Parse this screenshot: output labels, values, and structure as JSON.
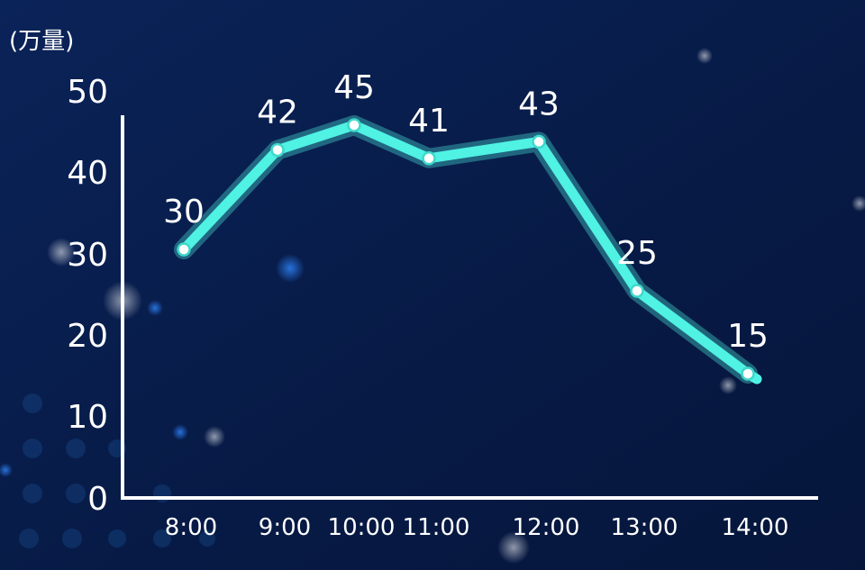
{
  "colors": {
    "background": "#071a45",
    "line": "#4ff2e3",
    "axis": "#ffffff",
    "text": "#ffffff"
  },
  "chart_data": {
    "type": "line",
    "title": "",
    "unit_label": "(万量)",
    "xlabel": "",
    "ylabel": "",
    "categories": [
      "8:00",
      "9:00",
      "10:00",
      "11:00",
      "12:00",
      "13:00",
      "14:00"
    ],
    "series": [
      {
        "values": [
          30,
          42,
          45,
          41,
          43,
          25,
          15
        ]
      }
    ],
    "data_labels": [
      "30",
      "42",
      "45",
      "41",
      "43",
      "25",
      "15"
    ],
    "yticks": [
      "0",
      "10",
      "20",
      "30",
      "40",
      "50"
    ],
    "ylim": [
      0,
      50
    ],
    "grid": false,
    "legend": "none"
  }
}
